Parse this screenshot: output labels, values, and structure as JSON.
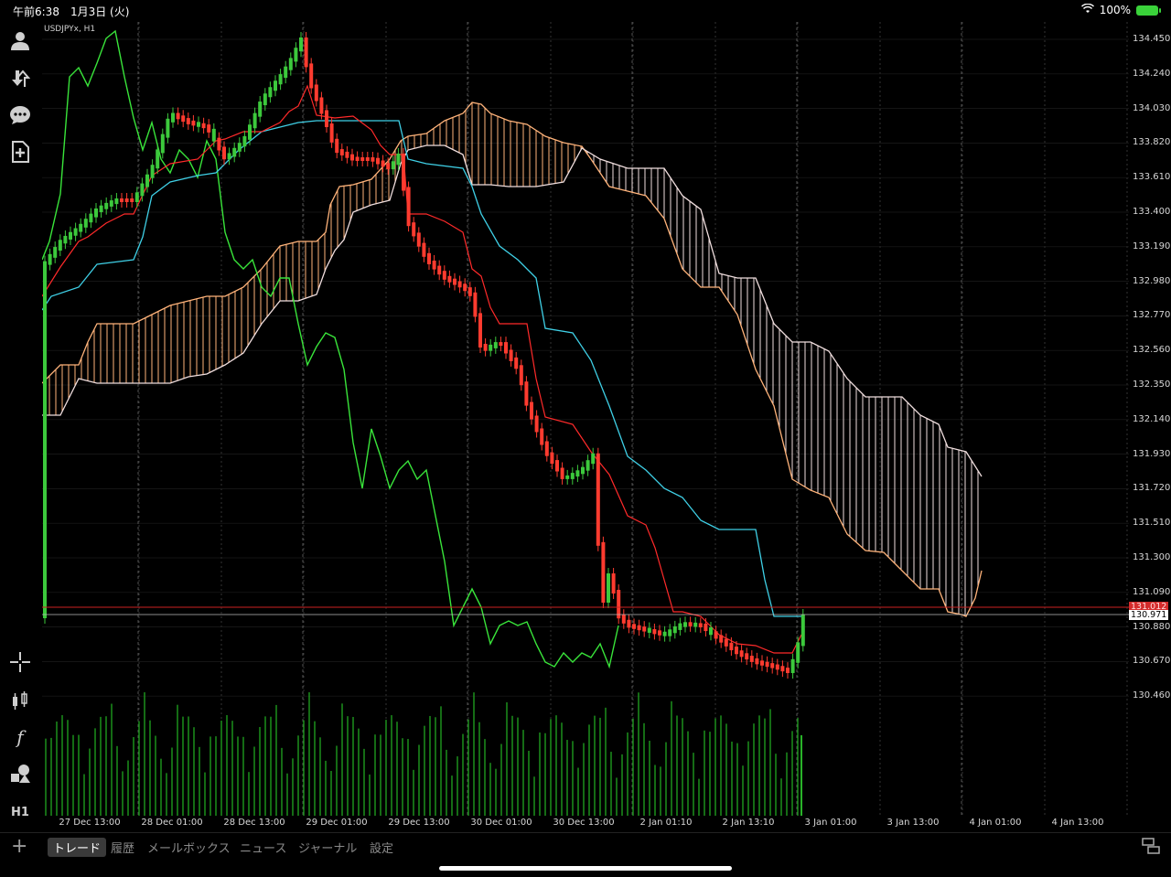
{
  "status": {
    "time": "午前6:38　1月3日 (火)",
    "battery": "100%"
  },
  "chart": {
    "symbol": "USDJPYx, H1",
    "current_price_red": "131.012",
    "current_price_white": "130.971",
    "price_labels": [
      "134.450",
      "134.240",
      "134.030",
      "133.820",
      "133.610",
      "133.400",
      "133.190",
      "132.980",
      "132.770",
      "132.560",
      "132.350",
      "132.140",
      "131.930",
      "131.720",
      "131.510",
      "131.300",
      "131.090",
      "130.880",
      "130.670",
      "130.460"
    ],
    "time_labels": [
      "27 Dec 13:00",
      "28 Dec 01:00",
      "28 Dec 13:00",
      "29 Dec 01:00",
      "29 Dec 13:00",
      "30 Dec 01:00",
      "30 Dec 13:00",
      "2 Jan 01:10",
      "2 Jan 13:10",
      "3 Jan 01:00",
      "3 Jan 13:00",
      "4 Jan 01:00",
      "4 Jan 13:00"
    ],
    "colors": {
      "bull": "#3cc93c",
      "bear": "#ff3b2f",
      "tenkan": "#ff2a2a",
      "kijun": "#3fd0e6",
      "chikou": "#39e43a",
      "cloud_up": "#ffb37a",
      "cloud_down": "#f0dede",
      "volume": "#1e9a1e"
    }
  },
  "sidebar": {
    "icons": [
      "user-icon",
      "deposit-icon",
      "chat-icon",
      "new-order-icon",
      "crosshair-icon",
      "indicators-icon",
      "function-icon",
      "objects-icon"
    ],
    "timeframe": "H1"
  },
  "tabs": {
    "plus": "+",
    "items": [
      "トレード",
      "履歴",
      "メールボックス",
      "ニュース",
      "ジャーナル",
      "設定"
    ]
  }
}
